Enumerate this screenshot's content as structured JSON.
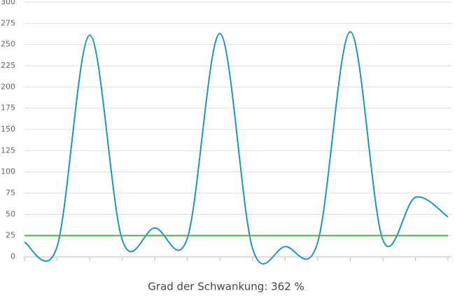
{
  "chart_data": {
    "type": "line",
    "categories": [
      null,
      null,
      null,
      null,
      null,
      null,
      null,
      null,
      null,
      null,
      null,
      null,
      null,
      null
    ],
    "series": [
      {
        "color": "#1a95c2",
        "values": [
          17,
          12,
          261,
          20,
          34,
          22,
          263,
          10,
          12,
          17,
          265,
          20,
          70,
          47
        ]
      },
      {
        "color": "#4caf3e",
        "values": [
          25,
          25,
          25,
          25,
          25,
          25,
          25,
          25,
          25,
          25,
          25,
          25,
          25,
          25
        ]
      }
    ],
    "ylim": [
      0,
      300
    ],
    "yticks": [
      0,
      25,
      50,
      75,
      100,
      125,
      150,
      175,
      200,
      225,
      250,
      275,
      300
    ],
    "grid": true,
    "caption": "Grad der Schwankung: 362 %"
  }
}
